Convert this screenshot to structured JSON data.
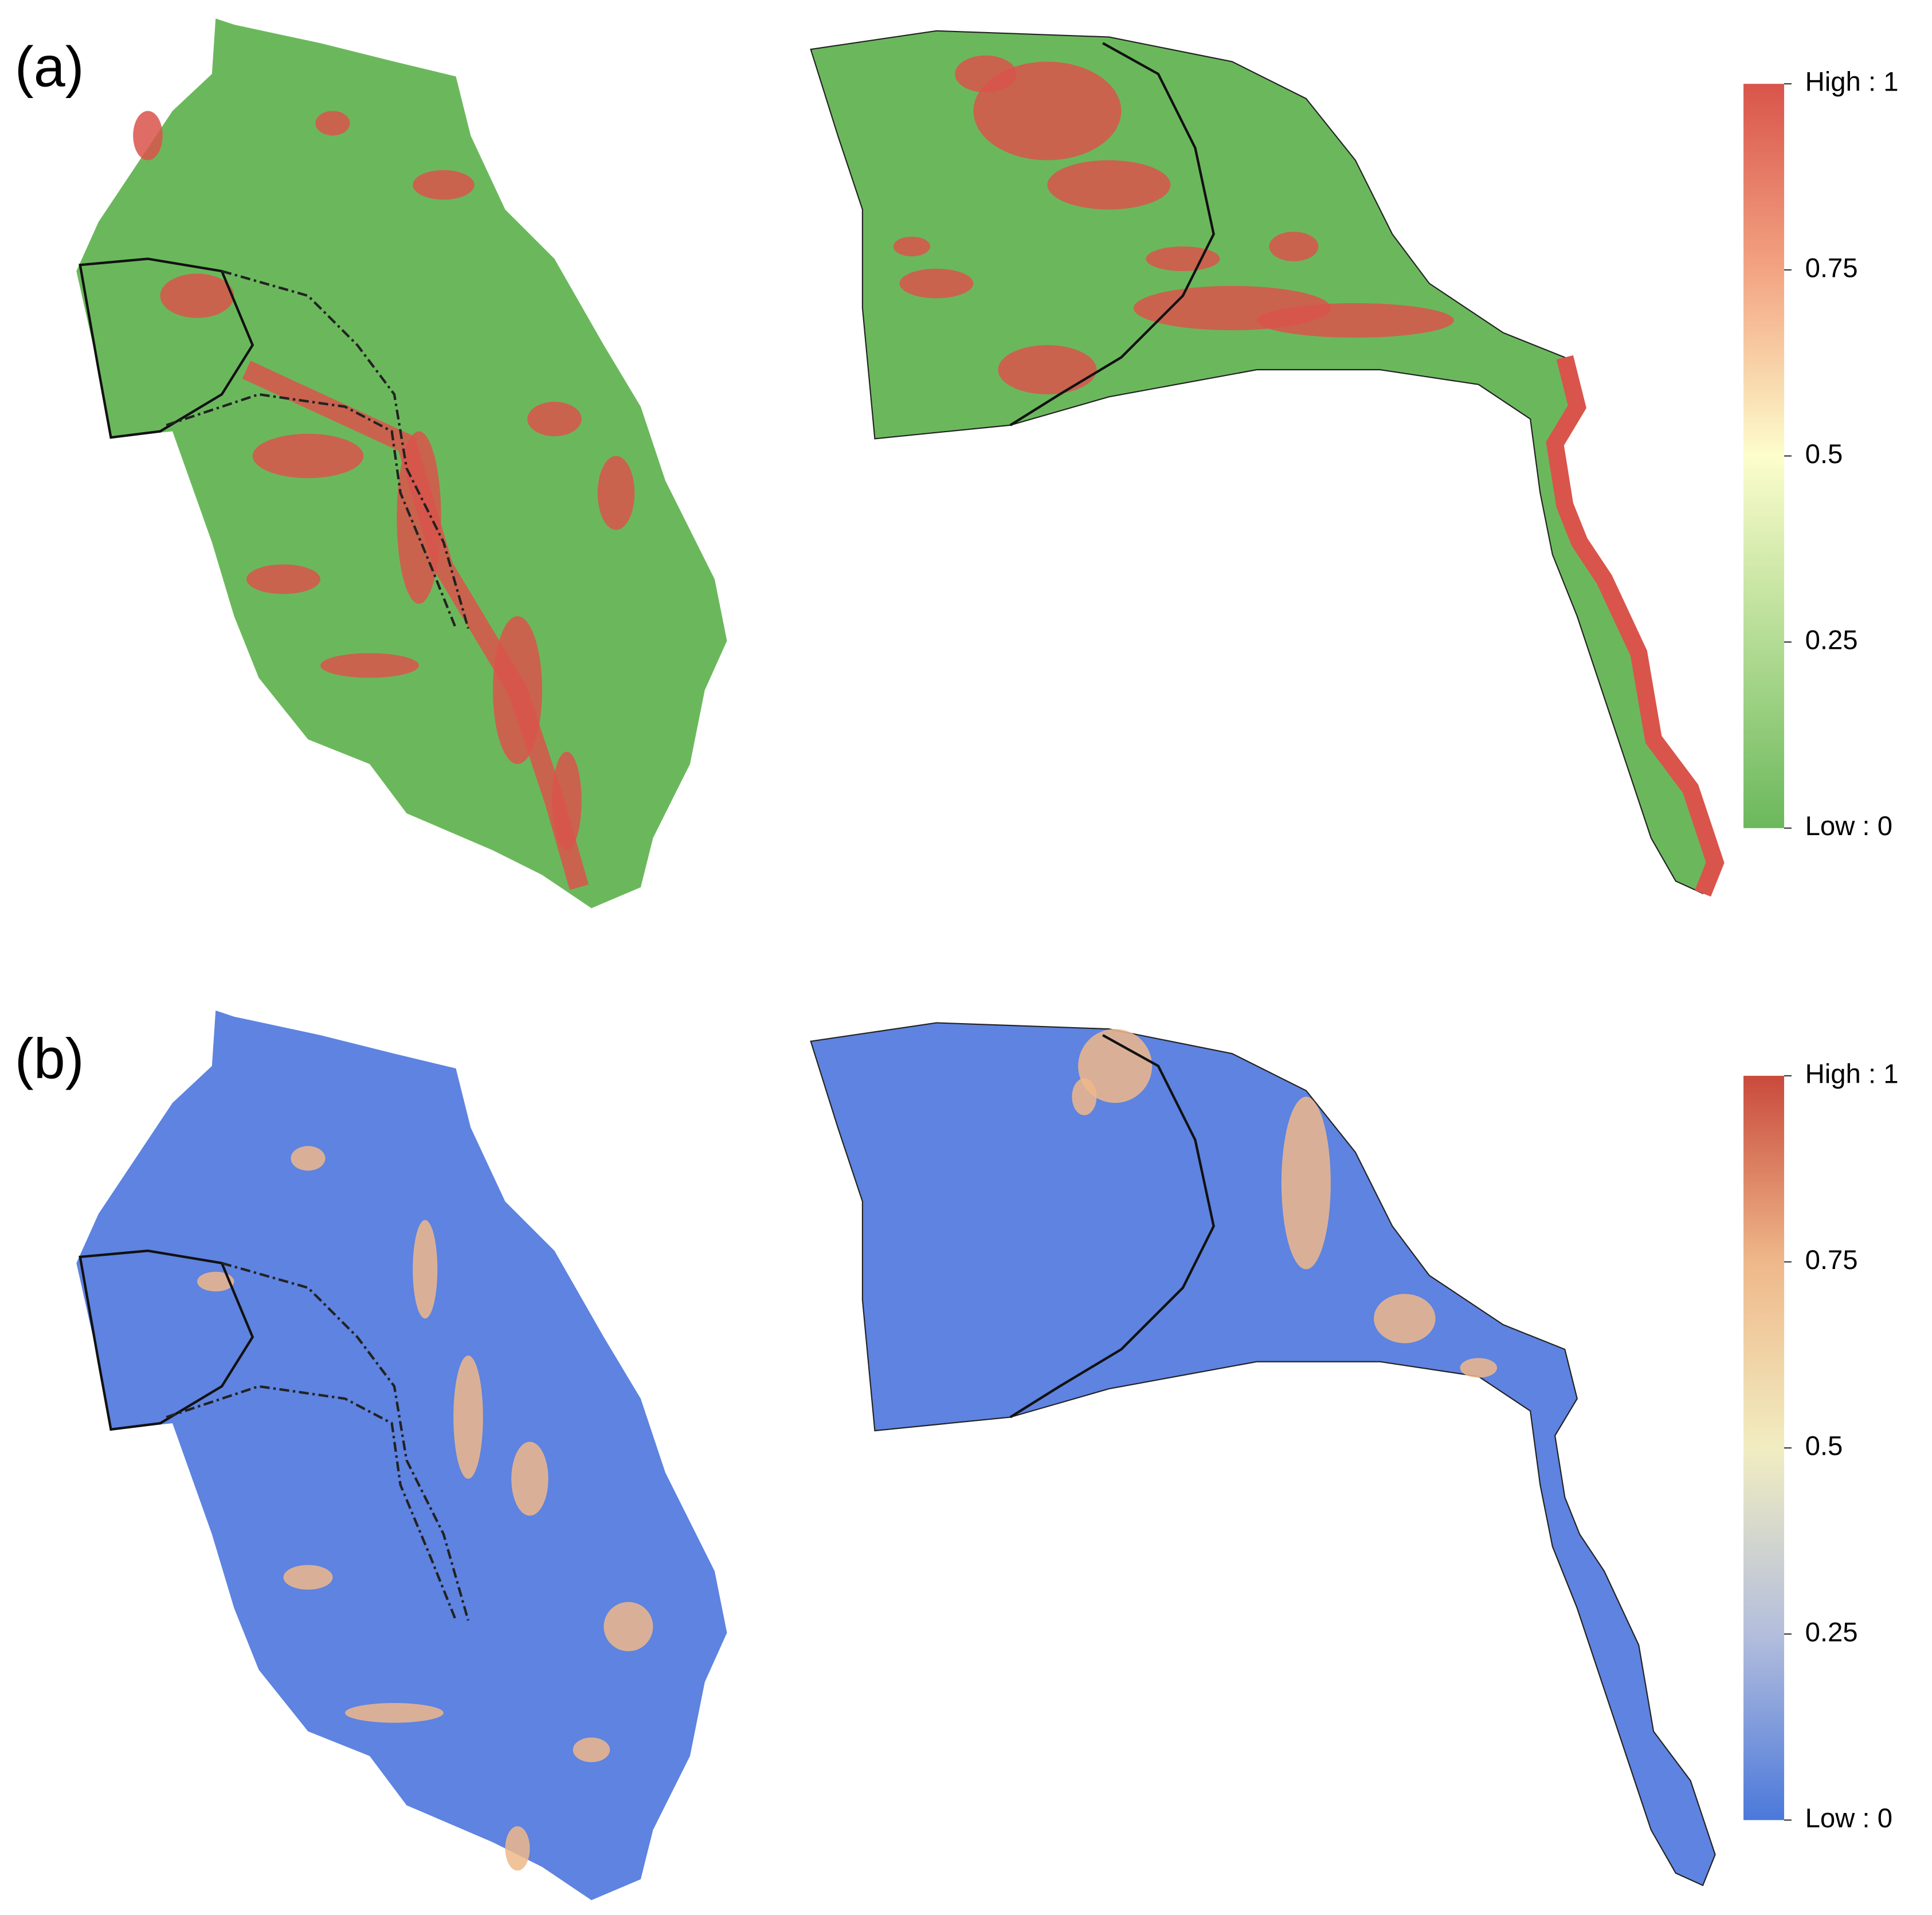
{
  "panels": [
    {
      "label": "(a)",
      "legend": {
        "ticks": [
          {
            "value": 1,
            "label": "High : 1"
          },
          0.75,
          0.5,
          0.25,
          {
            "value": 0,
            "label": "Low : 0"
          }
        ],
        "colors": [
          "#d9544b",
          "#f3a482",
          "#fdfdcc",
          "#b3dc94",
          "#6bb85c"
        ]
      }
    },
    {
      "label": "(b)",
      "legend": {
        "ticks": [
          {
            "value": 1,
            "label": "High : 1"
          },
          0.75,
          0.5,
          0.25,
          {
            "value": 0,
            "label": "Low : 0"
          }
        ],
        "colors": [
          "#c94a3c",
          "#efb88a",
          "#f1edc1",
          "#b4bedc",
          "#4b78db"
        ]
      }
    }
  ]
}
